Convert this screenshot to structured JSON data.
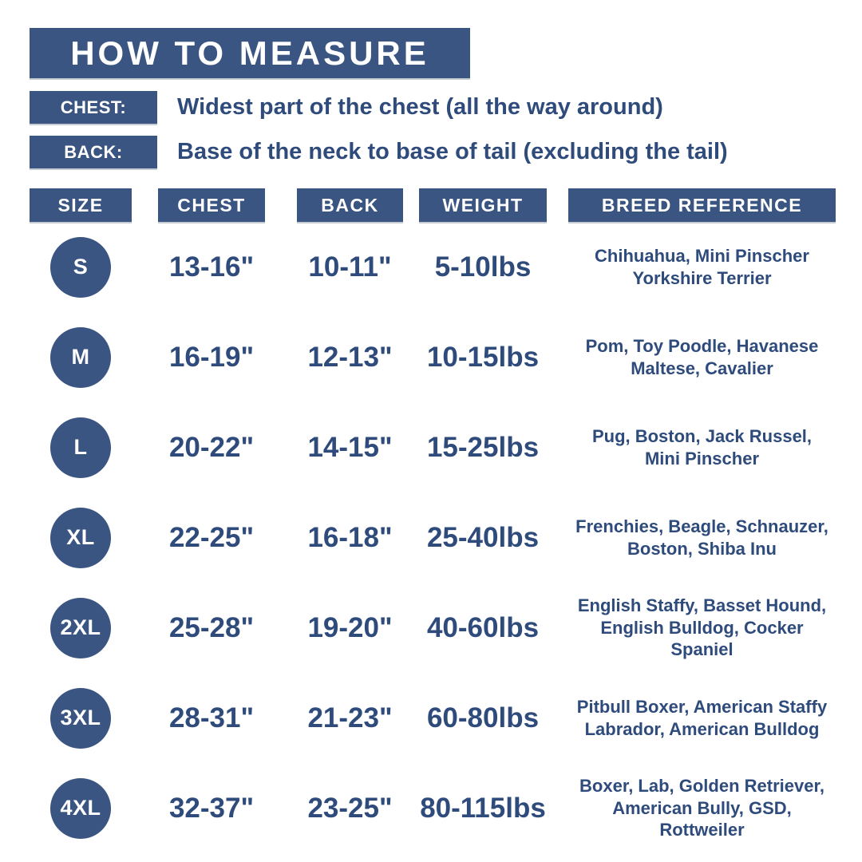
{
  "title": "HOW TO MEASURE",
  "colors": {
    "navy_box": "#3a5582",
    "navy_text": "#2e4b7c",
    "background": "#ffffff"
  },
  "legend": {
    "chest": {
      "label": "CHEST:",
      "description": "Widest part of the chest (all the way around)"
    },
    "back": {
      "label": "BACK:",
      "description": "Base of the neck to base of tail (excluding the tail)"
    }
  },
  "table": {
    "headers": {
      "size": "SIZE",
      "chest": "CHEST",
      "back": "BACK",
      "weight": "WEIGHT",
      "breed": "BREED REFERENCE"
    },
    "rows": [
      {
        "size": "S",
        "chest": "13-16\"",
        "back": "10-11\"",
        "weight": "5-10lbs",
        "breeds": "Chihuahua, Mini Pinscher\nYorkshire Terrier"
      },
      {
        "size": "M",
        "chest": "16-19\"",
        "back": "12-13\"",
        "weight": "10-15lbs",
        "breeds": "Pom, Toy Poodle, Havanese\nMaltese, Cavalier"
      },
      {
        "size": "L",
        "chest": "20-22\"",
        "back": "14-15\"",
        "weight": "15-25lbs",
        "breeds": "Pug, Boston, Jack Russel,\nMini Pinscher"
      },
      {
        "size": "XL",
        "chest": "22-25\"",
        "back": "16-18\"",
        "weight": "25-40lbs",
        "breeds": "Frenchies, Beagle, Schnauzer,\nBoston, Shiba Inu"
      },
      {
        "size": "2XL",
        "chest": "25-28\"",
        "back": "19-20\"",
        "weight": "40-60lbs",
        "breeds": "English Staffy, Basset Hound,\nEnglish Bulldog, Cocker\nSpaniel"
      },
      {
        "size": "3XL",
        "chest": "28-31\"",
        "back": "21-23\"",
        "weight": "60-80lbs",
        "breeds": "Pitbull Boxer, American Staffy\nLabrador, American Bulldog"
      },
      {
        "size": "4XL",
        "chest": "32-37\"",
        "back": "23-25\"",
        "weight": "80-115lbs",
        "breeds": "Boxer, Lab, Golden Retriever,\nAmerican Bully, GSD, Rottweiler"
      }
    ]
  },
  "chart_data": {
    "type": "table",
    "title": "HOW TO MEASURE",
    "notes": [
      "CHEST: Widest part of the chest (all the way around)",
      "BACK: Base of the neck to base of tail (excluding the tail)"
    ],
    "columns": [
      "SIZE",
      "CHEST",
      "BACK",
      "WEIGHT",
      "BREED REFERENCE"
    ],
    "rows": [
      [
        "S",
        "13-16\"",
        "10-11\"",
        "5-10lbs",
        "Chihuahua, Mini Pinscher Yorkshire Terrier"
      ],
      [
        "M",
        "16-19\"",
        "12-13\"",
        "10-15lbs",
        "Pom, Toy Poodle, Havanese Maltese, Cavalier"
      ],
      [
        "L",
        "20-22\"",
        "14-15\"",
        "15-25lbs",
        "Pug, Boston, Jack Russel, Mini Pinscher"
      ],
      [
        "XL",
        "22-25\"",
        "16-18\"",
        "25-40lbs",
        "Frenchies, Beagle, Schnauzer, Boston, Shiba Inu"
      ],
      [
        "2XL",
        "25-28\"",
        "19-20\"",
        "40-60lbs",
        "English Staffy, Basset Hound, English Bulldog, Cocker Spaniel"
      ],
      [
        "3XL",
        "28-31\"",
        "21-23\"",
        "60-80lbs",
        "Pitbull Boxer, American Staffy Labrador, American Bulldog"
      ],
      [
        "4XL",
        "32-37\"",
        "23-25\"",
        "80-115lbs",
        "Boxer, Lab, Golden Retriever, American Bully, GSD, Rottweiler"
      ]
    ]
  }
}
